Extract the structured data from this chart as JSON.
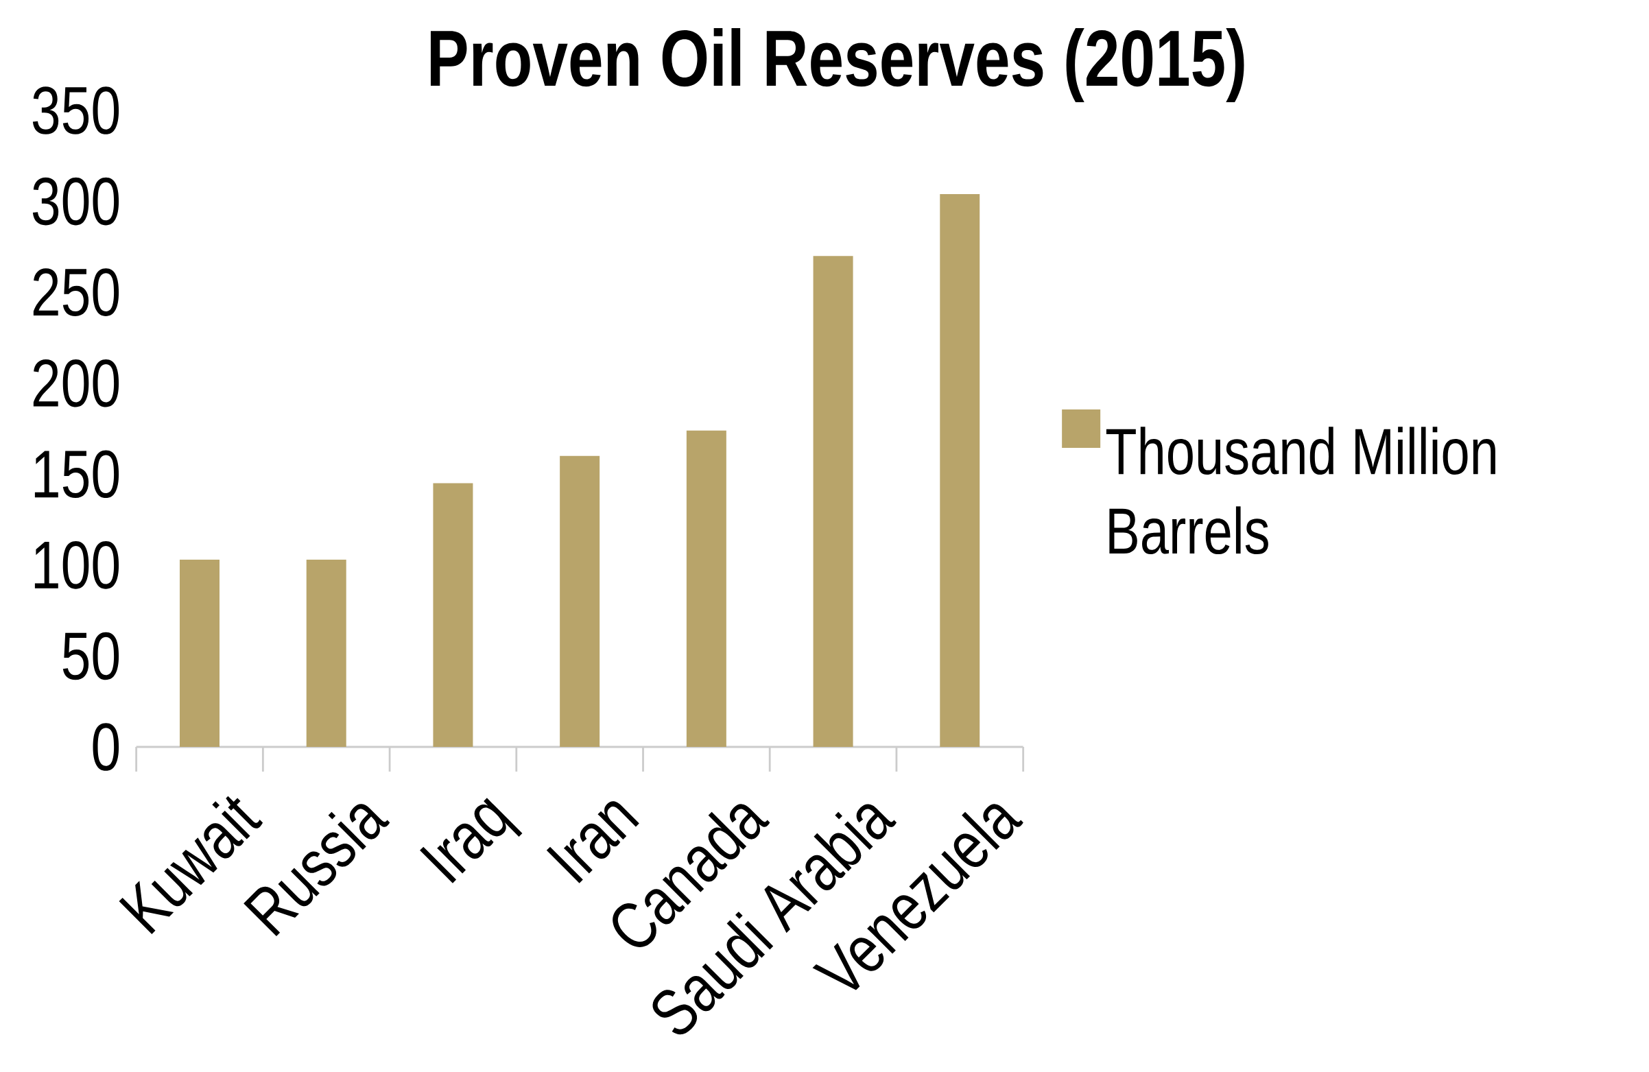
{
  "chart_data": {
    "type": "bar",
    "title": "Proven Oil Reserves (2015)",
    "categories": [
      "Kuwait",
      "Russia",
      "Iraq",
      "Iran",
      "Canada",
      "Saudi Arabia",
      "Venezuela"
    ],
    "series": [
      {
        "name": "Thousand Million Barrels",
        "color": "#b8a46a",
        "values": [
          103,
          103,
          145,
          160,
          174,
          270,
          304
        ]
      }
    ],
    "ylim": [
      0,
      350
    ],
    "yticks": [
      0,
      50,
      100,
      150,
      200,
      250,
      300,
      350
    ],
    "legend": "right"
  }
}
